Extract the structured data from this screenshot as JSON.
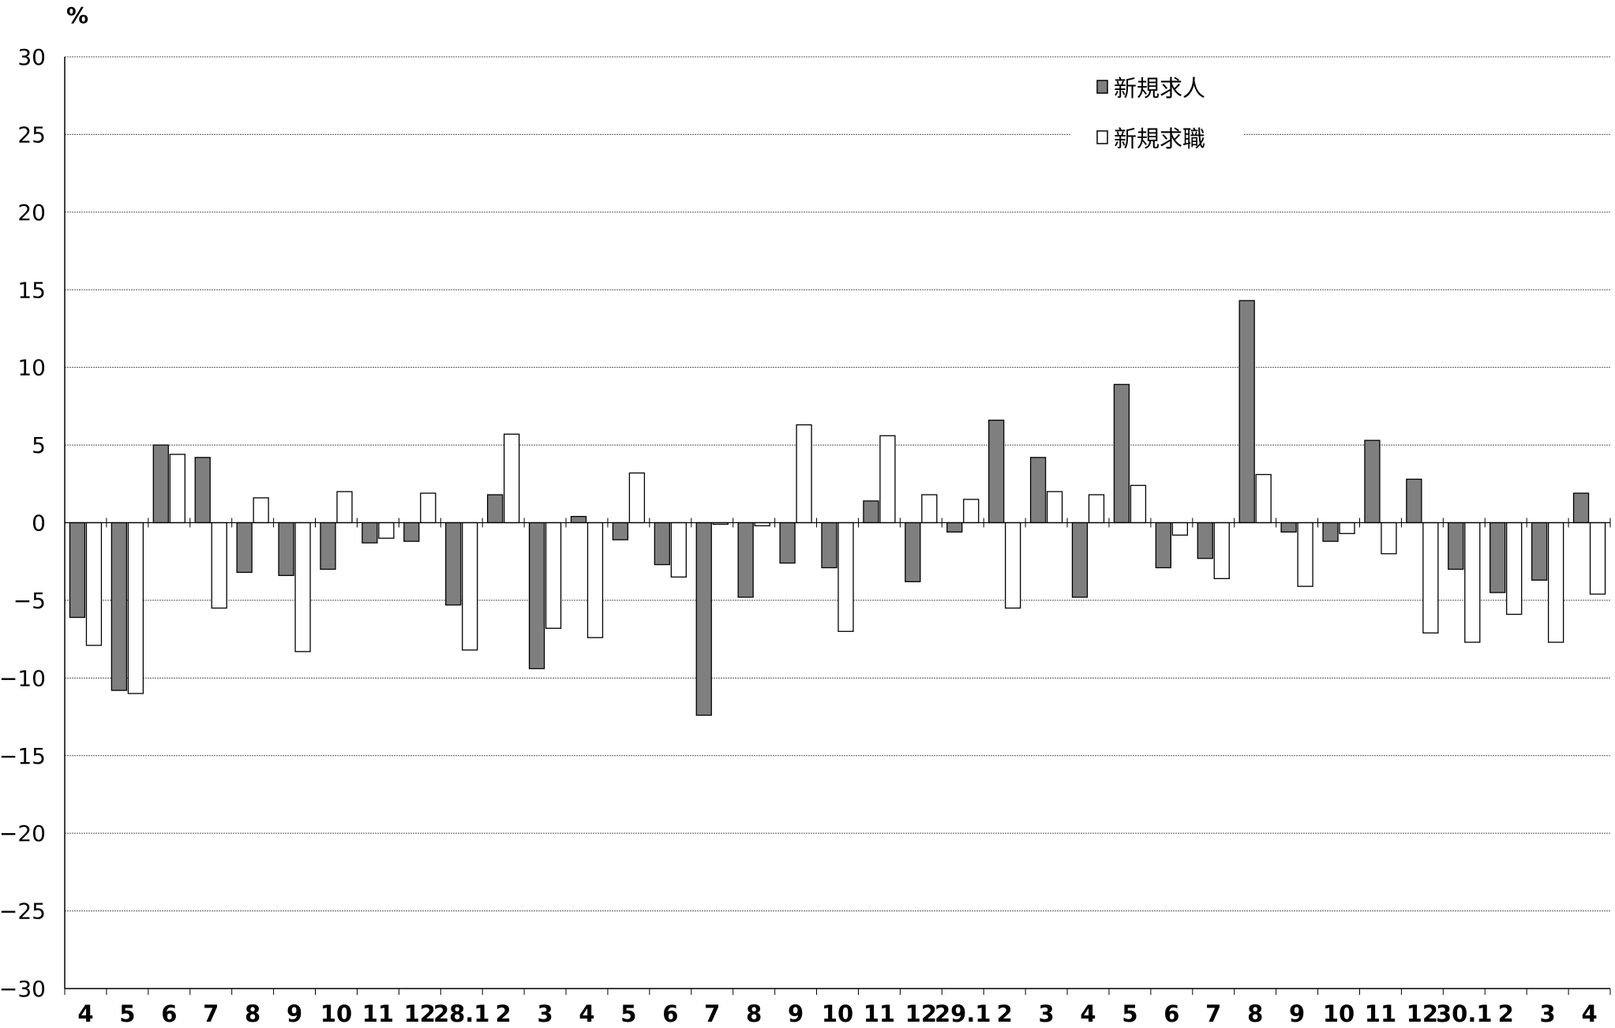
{
  "chart_data": {
    "type": "bar",
    "ylabel": "%",
    "ylim": [
      -30,
      30
    ],
    "yticks": [
      30,
      25,
      20,
      15,
      10,
      5,
      0,
      -5,
      -10,
      -15,
      -20,
      -25,
      -30
    ],
    "grid": true,
    "legend_position": "top-right",
    "categories": [
      "4",
      "5",
      "6",
      "7",
      "8",
      "9",
      "10",
      "11",
      "12",
      "28.1",
      "2",
      "3",
      "4",
      "5",
      "6",
      "7",
      "8",
      "9",
      "10",
      "11",
      "12",
      "29.1",
      "2",
      "3",
      "4",
      "5",
      "6",
      "7",
      "8",
      "9",
      "10",
      "11",
      "12",
      "30.1",
      "2",
      "3",
      "4"
    ],
    "series": [
      {
        "name": "新規求人",
        "color": "#7f7f7f",
        "values": [
          -6.1,
          -10.8,
          5.0,
          4.2,
          -3.2,
          -3.4,
          -3.0,
          -1.3,
          -1.2,
          -5.3,
          1.8,
          -9.4,
          0.4,
          -1.1,
          -2.7,
          -12.4,
          -4.8,
          -2.6,
          -2.9,
          1.4,
          -3.8,
          -0.6,
          6.6,
          4.2,
          -4.8,
          8.9,
          -2.9,
          -2.3,
          14.3,
          -0.6,
          -1.2,
          5.3,
          2.8,
          -3.0,
          -4.5,
          -3.7,
          1.9
        ]
      },
      {
        "name": "新規求職",
        "color": "#ffffff",
        "values": [
          -7.9,
          -11.0,
          4.4,
          -5.5,
          1.6,
          -8.3,
          2.0,
          -1.0,
          1.9,
          -8.2,
          5.7,
          -6.8,
          -7.4,
          3.2,
          -3.5,
          -0.1,
          -0.2,
          6.3,
          -7.0,
          5.6,
          1.8,
          1.5,
          -5.5,
          2.0,
          1.8,
          2.4,
          -0.8,
          -3.6,
          3.1,
          -4.1,
          -0.7,
          -2.0,
          -7.1,
          -7.7,
          -5.9,
          -7.7,
          -4.6
        ]
      }
    ]
  }
}
